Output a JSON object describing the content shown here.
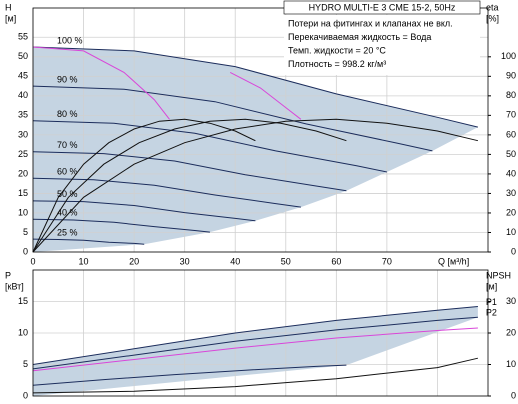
{
  "chart_data": [
    {
      "type": "line",
      "title": "HYDRO MULTI-E 3 CME 15-2, 50Hz",
      "annotations": [
        "Потери на фитингах и клапанах не вкл.",
        "Перекачиваемая жидкость = Вода",
        "Темп. жидкости = 20 °C",
        "Плотность = 998.2 кг/м³"
      ],
      "xlabel": "Q [м³/h]",
      "ylabel": [
        "H",
        "[м]"
      ],
      "y2label": [
        "eta",
        "[%]"
      ],
      "xlim": [
        0,
        90
      ],
      "xticks": [
        0,
        10,
        20,
        30,
        40,
        50,
        60,
        70
      ],
      "ylim": [
        0,
        62.5
      ],
      "yticks": [
        0,
        5,
        10,
        15,
        20,
        25,
        30,
        35,
        40,
        45,
        50,
        55
      ],
      "y2lim": [
        0,
        125
      ],
      "y2ticks": [
        0,
        10,
        20,
        30,
        40,
        50,
        60,
        70,
        80,
        90,
        100
      ],
      "grid": true,
      "shaded_range": true,
      "curve_labels": "start",
      "xtick_labels": true,
      "series": [
        {
          "name": "100 %",
          "color": "#1c2d5c",
          "x": [
            0,
            20,
            40,
            60,
            80,
            88
          ],
          "values": [
            52.5,
            51.5,
            47.5,
            40.5,
            34.5,
            32
          ]
        },
        {
          "name": "90 %",
          "color": "#1c2d5c",
          "x": [
            0,
            18,
            36,
            54,
            72,
            79
          ],
          "values": [
            42.5,
            41.7,
            38.5,
            32.8,
            27.9,
            25.9
          ]
        },
        {
          "name": "80 %",
          "color": "#1c2d5c",
          "x": [
            0,
            16,
            32,
            48,
            64,
            70
          ],
          "values": [
            33.6,
            33,
            30.4,
            25.9,
            22.1,
            20.5
          ]
        },
        {
          "name": "70 %",
          "color": "#1c2d5c",
          "x": [
            0,
            14,
            28,
            42,
            56,
            62
          ],
          "values": [
            25.7,
            25.2,
            23.3,
            19.8,
            16.9,
            15.7
          ]
        },
        {
          "name": "60 %",
          "color": "#1c2d5c",
          "x": [
            0,
            12,
            24,
            36,
            48,
            53
          ],
          "values": [
            18.9,
            18.5,
            17.1,
            14.6,
            12.4,
            11.5
          ]
        },
        {
          "name": "50 %",
          "color": "#1c2d5c",
          "x": [
            0,
            10,
            20,
            30,
            40,
            44
          ],
          "values": [
            13.1,
            12.9,
            11.9,
            10.1,
            8.6,
            8
          ]
        },
        {
          "name": "40 %",
          "color": "#1c2d5c",
          "x": [
            0,
            8,
            16,
            24,
            32,
            35
          ],
          "values": [
            8.4,
            8.2,
            7.6,
            6.5,
            5.5,
            5.1
          ]
        },
        {
          "name": "25 %",
          "color": "#1c2d5c",
          "x": [
            0,
            5,
            10,
            15,
            20,
            22
          ],
          "values": [
            3.3,
            3.2,
            3,
            2.5,
            2.2,
            2
          ]
        },
        {
          "color": "#d946d9",
          "x": [
            0,
            10,
            18,
            24,
            27
          ],
          "values": [
            52.5,
            51.5,
            46,
            39,
            34
          ]
        },
        {
          "color": "#d946d9",
          "x": [
            39,
            45,
            50,
            53
          ],
          "values": [
            46,
            42,
            37,
            34
          ]
        },
        {
          "color": "#111111",
          "axis": "y2",
          "x": [
            0,
            10,
            20,
            30,
            40,
            50,
            60,
            70,
            80,
            88
          ],
          "values": [
            0,
            28,
            45,
            56,
            63,
            67,
            68,
            66,
            62,
            57
          ]
        },
        {
          "color": "#111111",
          "axis": "y2",
          "x": [
            0,
            7,
            14,
            21,
            28,
            35,
            42,
            49,
            56,
            62
          ],
          "values": [
            0,
            28,
            45,
            56,
            63,
            67,
            68,
            66,
            62,
            57
          ]
        },
        {
          "color": "#111111",
          "axis": "y2",
          "x": [
            0,
            5,
            10,
            15,
            20,
            25,
            30,
            35,
            40,
            44
          ],
          "values": [
            0,
            28,
            45,
            56,
            63,
            67,
            68,
            66,
            62,
            57
          ]
        }
      ]
    },
    {
      "type": "line",
      "ylabel": [
        "P",
        "[кВт]"
      ],
      "y2label": [
        "NPSH",
        "[м]"
      ],
      "xlim": [
        0,
        90
      ],
      "xticks": [
        0,
        10,
        20,
        30,
        40,
        50,
        60,
        70,
        80
      ],
      "ylim": [
        0,
        20
      ],
      "yticks": [
        0,
        5,
        10,
        15
      ],
      "y2lim": [
        0,
        40
      ],
      "y2ticks": [
        0,
        10,
        20,
        30
      ],
      "grid": true,
      "shaded_range": true,
      "curve_labels": "end",
      "xtick_labels": false,
      "series": [
        {
          "name": "P1",
          "color": "#1c2d5c",
          "x": [
            0,
            20,
            40,
            60,
            80,
            88
          ],
          "values": [
            5,
            7.5,
            10,
            12,
            13.6,
            14.2
          ]
        },
        {
          "name": "P2",
          "color": "#1c2d5c",
          "x": [
            0,
            20,
            40,
            60,
            80,
            88
          ],
          "values": [
            4.3,
            6.5,
            8.7,
            10.5,
            12,
            12.5
          ]
        },
        {
          "color": "#d946d9",
          "x": [
            0,
            20,
            40,
            60,
            80,
            88
          ],
          "values": [
            4,
            5.8,
            7.6,
            9.2,
            10.4,
            10.8
          ]
        },
        {
          "color": "#1c2d5c",
          "x": [
            0,
            14,
            28,
            42,
            56,
            62
          ],
          "values": [
            1.7,
            2.6,
            3.4,
            4.1,
            4.7,
            4.9
          ]
        },
        {
          "color": "#111111",
          "axis": "y2",
          "x": [
            0,
            20,
            40,
            60,
            80,
            88
          ],
          "values": [
            1,
            1.5,
            3,
            5.5,
            9,
            12
          ]
        }
      ]
    }
  ]
}
